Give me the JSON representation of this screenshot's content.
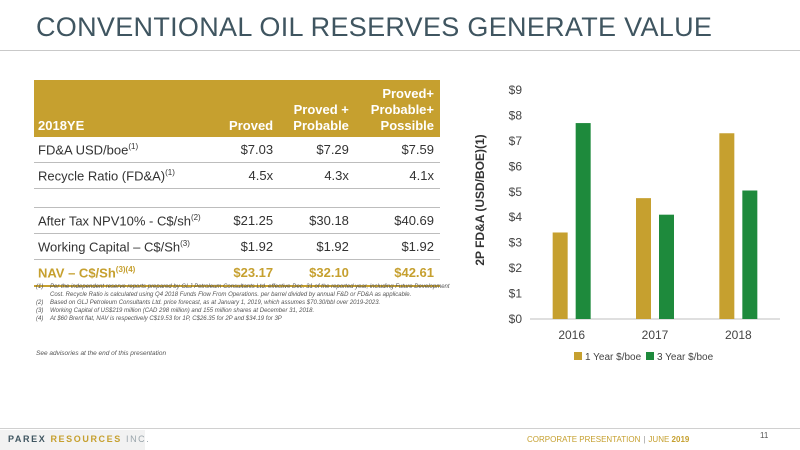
{
  "title": "CONVENTIONAL OIL RESERVES GENERATE VALUE",
  "table": {
    "headers": [
      "2018YE",
      "Proved",
      "Proved + Probable",
      "Proved+ Probable+ Possible"
    ],
    "rows": [
      {
        "label": "FD&A USD/boe",
        "sup": "(1)",
        "values": [
          "$7.03",
          "$7.29",
          "$7.59"
        ]
      },
      {
        "label": "Recycle Ratio (FD&A)",
        "sup": "(1)",
        "values": [
          "4.5x",
          "4.3x",
          "4.1x"
        ]
      },
      {
        "label": "After Tax NPV10% - C$/sh",
        "sup": "(2)",
        "values": [
          "$21.25",
          "$30.18",
          "$40.69"
        ]
      },
      {
        "label": "Working Capital – C$/Sh",
        "sup": "(3)",
        "values": [
          "$1.92",
          "$1.92",
          "$1.92"
        ]
      },
      {
        "label": "NAV – C$/Sh",
        "sup": "(3)(4)",
        "values": [
          "$23.17",
          "$32.10",
          "$42.61"
        ]
      }
    ]
  },
  "notes": [
    {
      "num": "(1)",
      "text": "Per the independent reserve reports prepared by GLJ Petroleum Consultants Ltd. effective Dec. 31 of the reported year, including Future Development Cost. Recycle Ratio is calculated using Q4 2018 Funds Flow From Operations. per barrel divided by annual F&D or FD&A as applicable."
    },
    {
      "num": "(2)",
      "text": "Based on GLJ Petroleum Consultants Ltd. price forecast, as at January 1, 2019, which assumes $70.30/bbl over 2019-2023."
    },
    {
      "num": "(3)",
      "text": "Working Capital of US$219 million (CAD 298 million) and 155 million shares at December 31, 2018."
    },
    {
      "num": "(4)",
      "text": "At $60 Brent flat, NAV is respectively C$19.53 for 1P, C$26.35 for 2P and $34.19 for 3P"
    }
  ],
  "advisory": "See advisories at the end of this presentation",
  "chart_data": {
    "type": "bar",
    "categories": [
      "2016",
      "2017",
      "2018"
    ],
    "series": [
      {
        "name": "1 Year $/boe",
        "values": [
          3.4,
          4.75,
          7.3
        ],
        "color": "#c6a02f"
      },
      {
        "name": "3 Year $/boe",
        "values": [
          7.7,
          4.1,
          5.05
        ],
        "color": "#1e8a3c"
      }
    ],
    "ylabel": "2P FD&A (USD/BOE)(1)",
    "ylim": [
      0,
      9
    ],
    "yticks": [
      "$0",
      "$1",
      "$2",
      "$3",
      "$4",
      "$5",
      "$6",
      "$7",
      "$8",
      "$9"
    ],
    "grid": false,
    "legend": "bottom"
  },
  "footer": {
    "brand_1": "PAREX",
    "brand_2": "RESOURCES",
    "brand_3": "INC.",
    "presentation": "CORPORATE PRESENTATION",
    "separator": "|",
    "month": "JUNE",
    "year": "2019",
    "page": "11"
  }
}
